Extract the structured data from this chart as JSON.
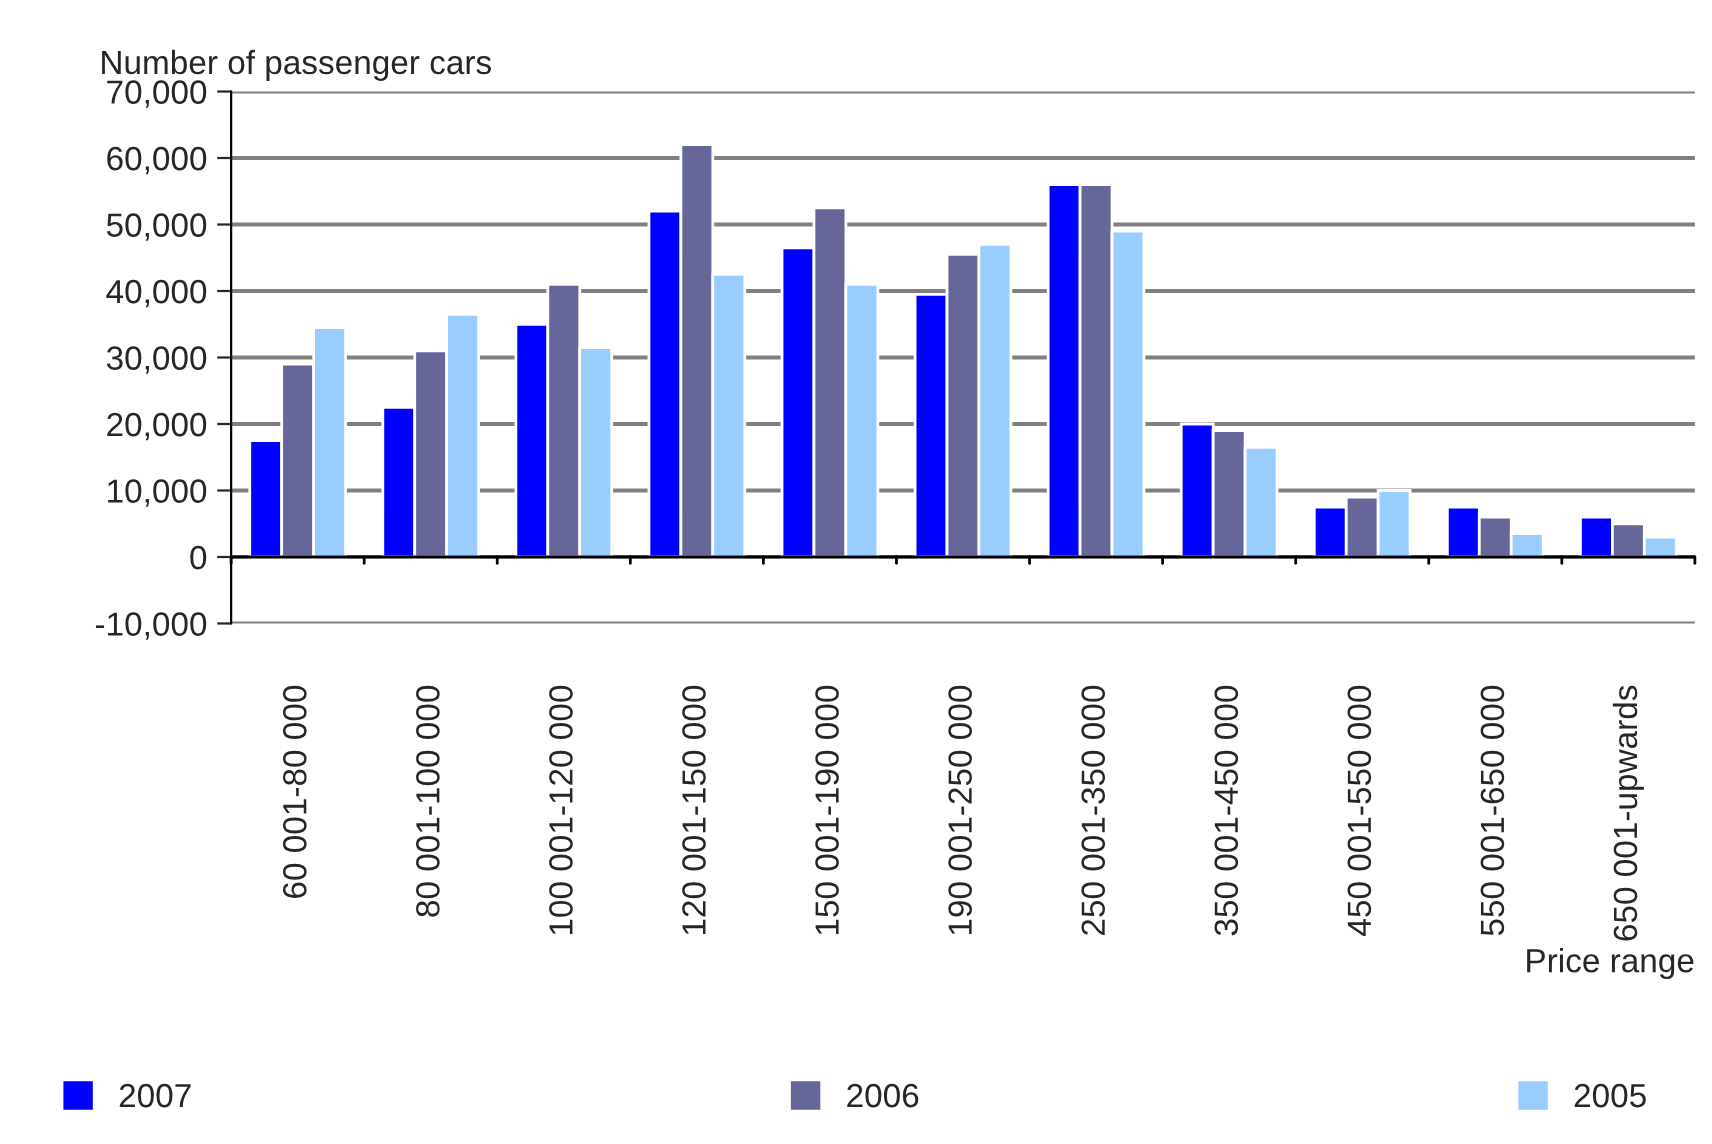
{
  "chart_data": {
    "type": "bar",
    "ylabel": "Number of passenger cars",
    "xlabel": "Price range",
    "categories": [
      "60 001-80 000",
      "80 001-100 000",
      "100 001-120 000",
      "120 001-150 000",
      "150 001-190 000",
      "190 001-250 000",
      "250 001-350 000",
      "350 001-450 000",
      "450 001-550 000",
      "550 001-650 000",
      "650 001-upwards"
    ],
    "series": [
      {
        "name": "2007",
        "color": "#0000ff",
        "values": [
          17500,
          22500,
          35000,
          52000,
          46500,
          39500,
          56000,
          20000,
          7500,
          7500,
          6000
        ]
      },
      {
        "name": "2006",
        "color": "#666699",
        "values": [
          29000,
          31000,
          41000,
          62000,
          52500,
          45500,
          56000,
          19000,
          9000,
          6000,
          5000
        ]
      },
      {
        "name": "2005",
        "color": "#99ccff",
        "values": [
          34500,
          36500,
          31500,
          42500,
          41000,
          47000,
          49000,
          16500,
          10000,
          3500,
          3000
        ]
      }
    ],
    "ylim": [
      -10000,
      70000
    ],
    "yticks": [
      {
        "value": -10000,
        "label": "-10,000"
      },
      0,
      {
        "value": 10000,
        "label": "10,000"
      },
      {
        "value": 20000,
        "label": "20,000"
      },
      {
        "value": 30000,
        "label": "30,000"
      },
      {
        "value": 40000,
        "label": "40,000"
      },
      {
        "value": 50000,
        "label": "50,000"
      },
      {
        "value": 60000,
        "label": "60,000"
      },
      {
        "value": 70000,
        "label": "70,000"
      }
    ],
    "grid": "y",
    "legend": "bottom"
  }
}
